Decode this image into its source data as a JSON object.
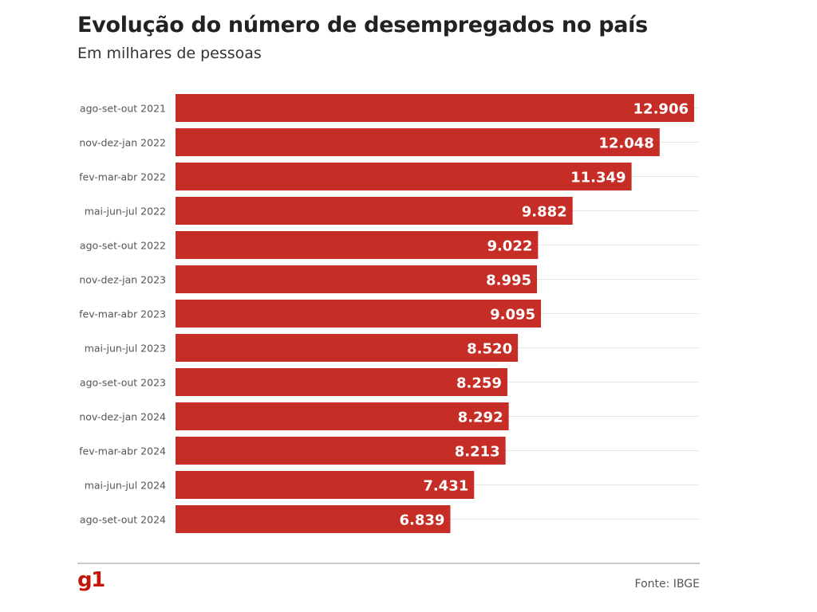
{
  "header": {
    "title": "Evolução do número de desempregados no país",
    "subtitle": "Em milhares de pessoas"
  },
  "footer": {
    "logo": "g1",
    "source": "Fonte: IBGE"
  },
  "colors": {
    "bar": "#c62d26",
    "bar_label": "#ffffff",
    "gridline": "#e6e6e6",
    "category_text": "#555555"
  },
  "chart_data": {
    "type": "bar",
    "orientation": "horizontal",
    "title": "Evolução do número de desempregados no país",
    "subtitle": "Em milhares de pessoas",
    "categories": [
      "ago-set-out 2021",
      "nov-dez-jan 2022",
      "fev-mar-abr 2022",
      "mai-jun-jul 2022",
      "ago-set-out 2022",
      "nov-dez-jan 2023",
      "fev-mar-abr 2023",
      "mai-jun-jul 2023",
      "ago-set-out 2023",
      "nov-dez-jan 2024",
      "fev-mar-abr 2024",
      "mai-jun-jul 2024",
      "ago-set-out 2024"
    ],
    "values": [
      12906,
      12048,
      11349,
      9882,
      9022,
      8995,
      9095,
      8520,
      8259,
      8292,
      8213,
      7431,
      6839
    ],
    "value_labels": [
      "12.906",
      "12.048",
      "11.349",
      "9.882",
      "9.022",
      "8.995",
      "9.095",
      "8.520",
      "8.259",
      "8.292",
      "8.213",
      "7.431",
      "6.839"
    ],
    "xlim": [
      0,
      12906
    ],
    "grid": true,
    "legend": "none"
  }
}
